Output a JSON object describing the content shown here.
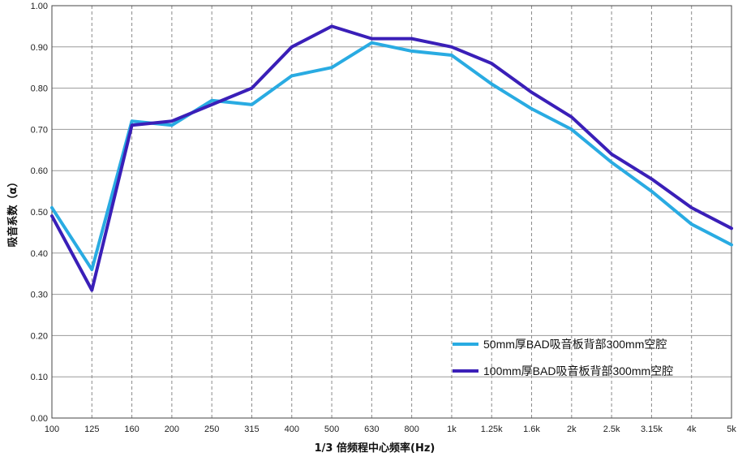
{
  "chart_data": {
    "type": "line",
    "title": "",
    "xlabel": "1/3 倍频程中心频率(Hz)",
    "ylabel": "吸音系数（α）",
    "categories": [
      "100",
      "125",
      "160",
      "200",
      "250",
      "315",
      "400",
      "500",
      "630",
      "800",
      "1k",
      "1.25k",
      "1.6k",
      "2k",
      "2.5k",
      "3.15k",
      "4k",
      "5k"
    ],
    "ylim": [
      0,
      1
    ],
    "yticks": [
      "0.00",
      "0.10",
      "0.20",
      "0.30",
      "0.40",
      "0.50",
      "0.60",
      "0.70",
      "0.80",
      "0.90",
      "1.00"
    ],
    "grid": "on",
    "legend_position": "bottom-right",
    "series": [
      {
        "name": "50mm厚BAD吸音板背部300mm空腔",
        "color": "#29abe2",
        "values": [
          0.51,
          0.36,
          0.72,
          0.71,
          0.77,
          0.76,
          0.83,
          0.85,
          0.91,
          0.89,
          0.88,
          0.81,
          0.75,
          0.7,
          0.62,
          0.55,
          0.47,
          0.42
        ]
      },
      {
        "name": "100mm厚BAD吸音板背部300mm空腔",
        "color": "#3a1fb8",
        "values": [
          0.49,
          0.31,
          0.71,
          0.72,
          0.76,
          0.8,
          0.9,
          0.95,
          0.92,
          0.92,
          0.9,
          0.86,
          0.79,
          0.73,
          0.64,
          0.58,
          0.51,
          0.46
        ]
      }
    ]
  }
}
